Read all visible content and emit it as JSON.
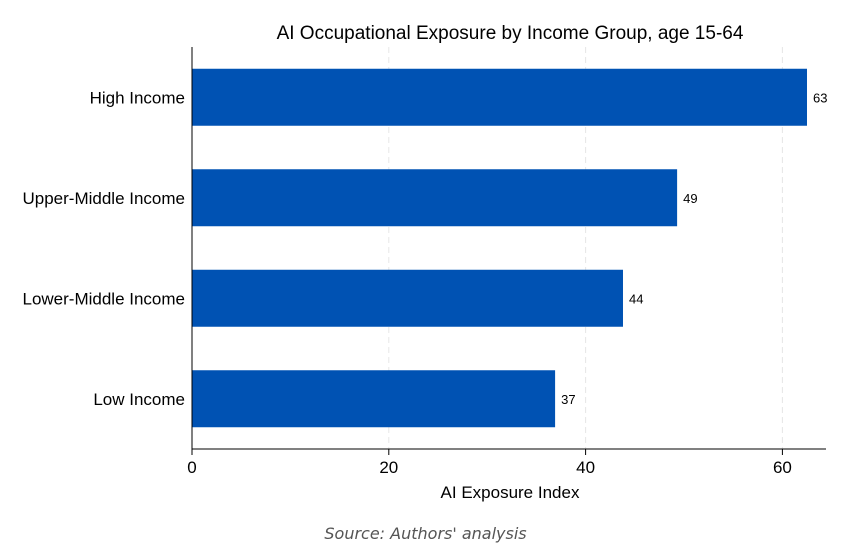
{
  "chart_data": {
    "type": "bar",
    "orientation": "horizontal",
    "title": "AI Occupational Exposure by Income Group, age 15-64",
    "xlabel": "AI Exposure Index",
    "ylabel": "",
    "categories": [
      "High Income",
      "Upper-Middle Income",
      "Lower-Middle Income",
      "Low Income"
    ],
    "values": [
      62.5,
      49.3,
      43.8,
      36.9
    ],
    "value_labels": [
      "63",
      "49",
      "44",
      "37"
    ],
    "xlim": [
      0,
      64
    ],
    "xticks": [
      0,
      20,
      40,
      60
    ],
    "grid": "vertical dashed",
    "bar_color": "#0052b3"
  },
  "source": "Source: Authors' analysis"
}
